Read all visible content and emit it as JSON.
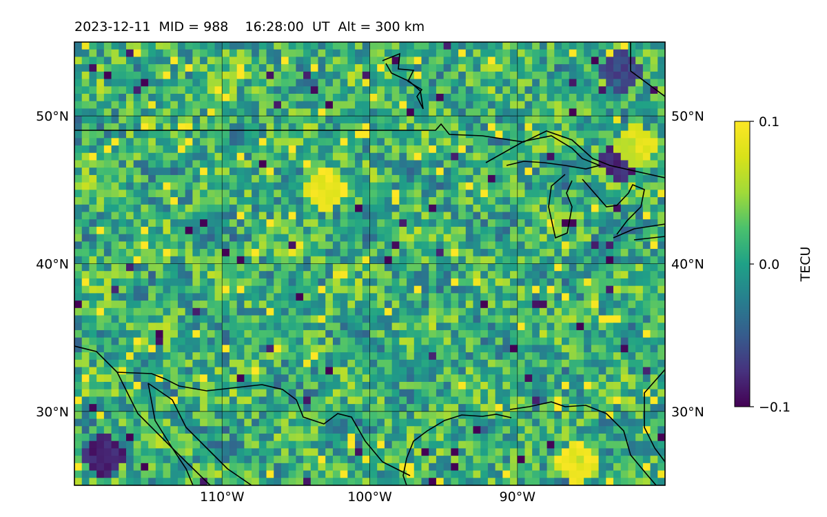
{
  "title": "2023-12-11  MID = 988    16:28:00  UT  Alt = 300 km",
  "chart_data": {
    "type": "heatmap",
    "title": "2023-12-11  MID = 988    16:28:00  UT  Alt = 300 km",
    "quantity": "TECU",
    "lon_range": [
      -120,
      -80
    ],
    "lat_range": [
      25,
      55
    ],
    "lon_ticks": [
      {
        "value": -110,
        "label": "110°W"
      },
      {
        "value": -100,
        "label": "100°W"
      },
      {
        "value": -90,
        "label": "90°W"
      }
    ],
    "lat_ticks": [
      {
        "value": 30,
        "label": "30°N"
      },
      {
        "value": 40,
        "label": "40°N"
      },
      {
        "value": 50,
        "label": "50°N"
      }
    ],
    "grid": true,
    "colormap": "viridis",
    "color_range": [
      -0.1,
      0.1
    ],
    "colorbar": {
      "label": "TECU",
      "ticks": [
        {
          "value": 0.1,
          "label": "0.1"
        },
        {
          "value": 0.0,
          "label": "0.0"
        },
        {
          "value": -0.1,
          "label": "−0.1"
        }
      ],
      "position": "right"
    },
    "coastlines": true,
    "notable_regions": [
      {
        "lon": -118,
        "lat": 27,
        "value": -0.1
      },
      {
        "lon": -83,
        "lat": 47,
        "value": -0.1
      },
      {
        "lon": -82,
        "lat": 48,
        "value": 0.1
      },
      {
        "lon": -83,
        "lat": 53,
        "value": -0.08
      },
      {
        "lon": -86,
        "lat": 26.5,
        "value": 0.1
      },
      {
        "lon": -103,
        "lat": 45,
        "value": 0.1
      }
    ]
  }
}
